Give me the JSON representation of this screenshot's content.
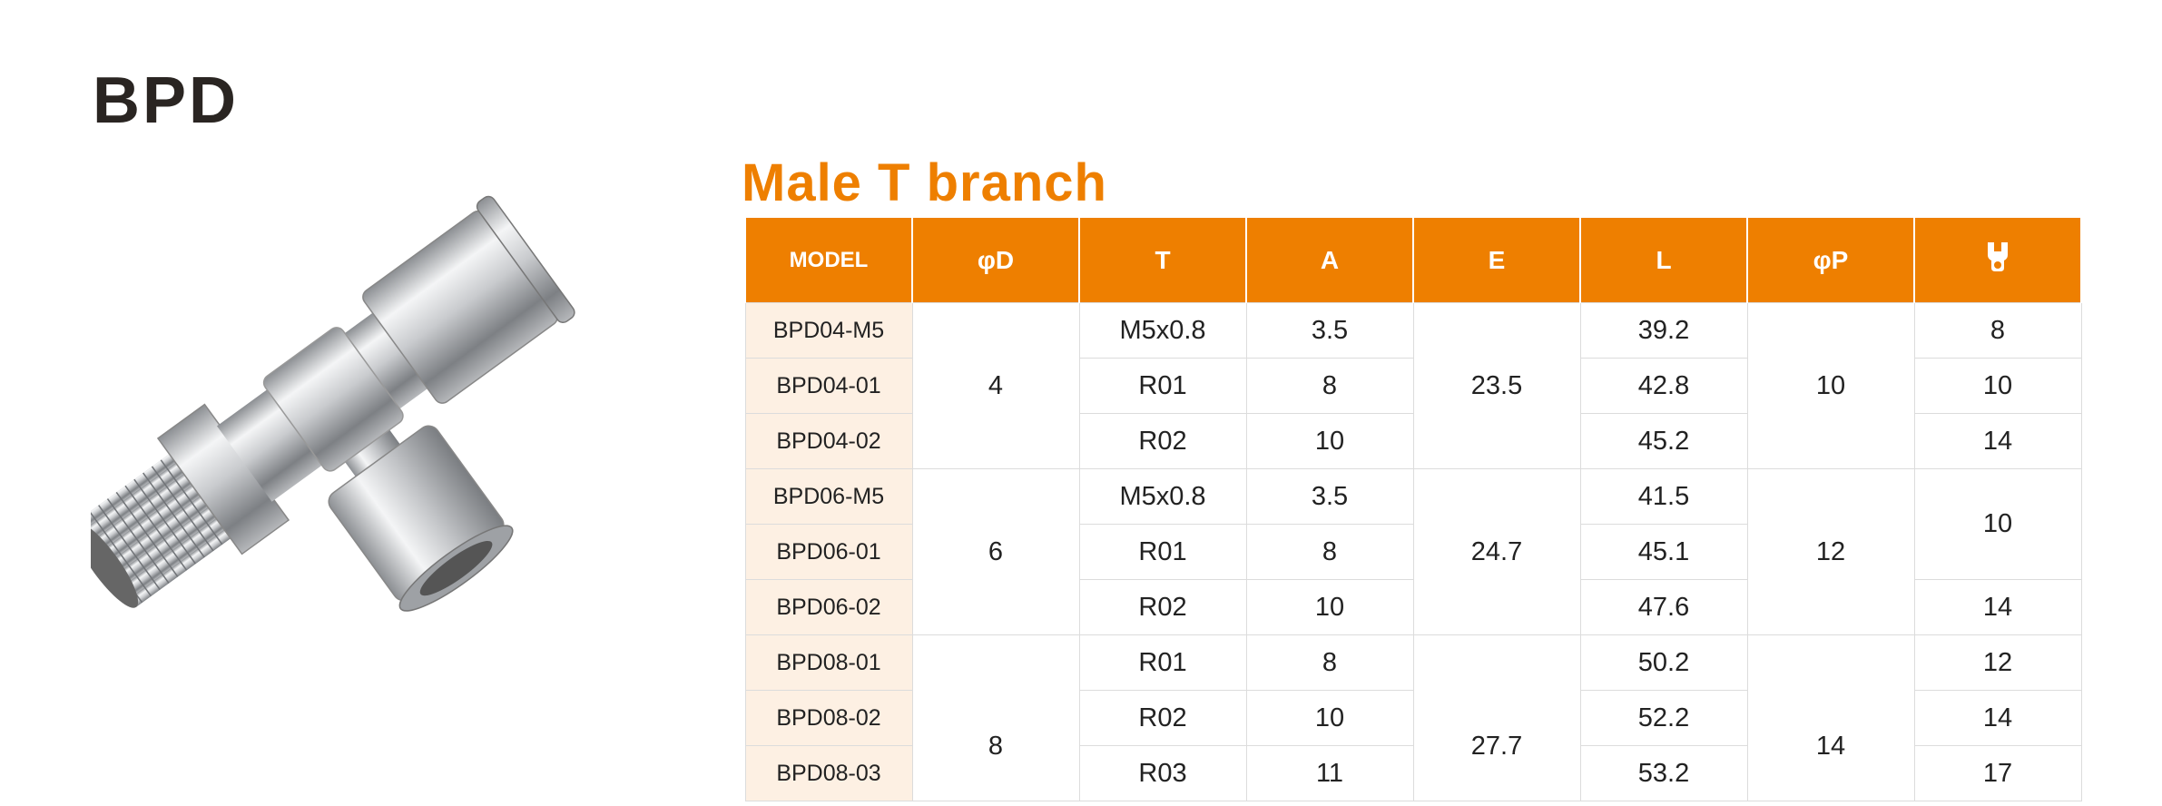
{
  "header": {
    "title": "BPD"
  },
  "table": {
    "title": "Male T branch",
    "headers": [
      "MODEL",
      "φD",
      "T",
      "A",
      "E",
      "L",
      "φP"
    ],
    "rows": [
      [
        "BPD04-M5",
        "4",
        "M5x0.8",
        "3.5",
        "23.5",
        "39.2",
        "10",
        "8"
      ],
      [
        "BPD04-01",
        "R01",
        "8",
        "42.8",
        "10"
      ],
      [
        "BPD04-02",
        "R02",
        "10",
        "45.2",
        "14"
      ],
      [
        "BPD06-M5",
        "6",
        "M5x0.8",
        "3.5",
        "24.7",
        "41.5",
        "12",
        "10"
      ],
      [
        "BPD06-01",
        "R01",
        "8",
        "45.1"
      ],
      [
        "BPD06-02",
        "R02",
        "10",
        "47.6",
        "14"
      ],
      [
        "BPD08-01",
        "8",
        "R01",
        "8",
        "27.7",
        "50.2",
        "14",
        "12"
      ],
      [
        "BPD08-02",
        "R02",
        "10",
        "52.2",
        "14"
      ],
      [
        "BPD08-03",
        "R03",
        "11",
        "53.2",
        "17"
      ]
    ]
  }
}
